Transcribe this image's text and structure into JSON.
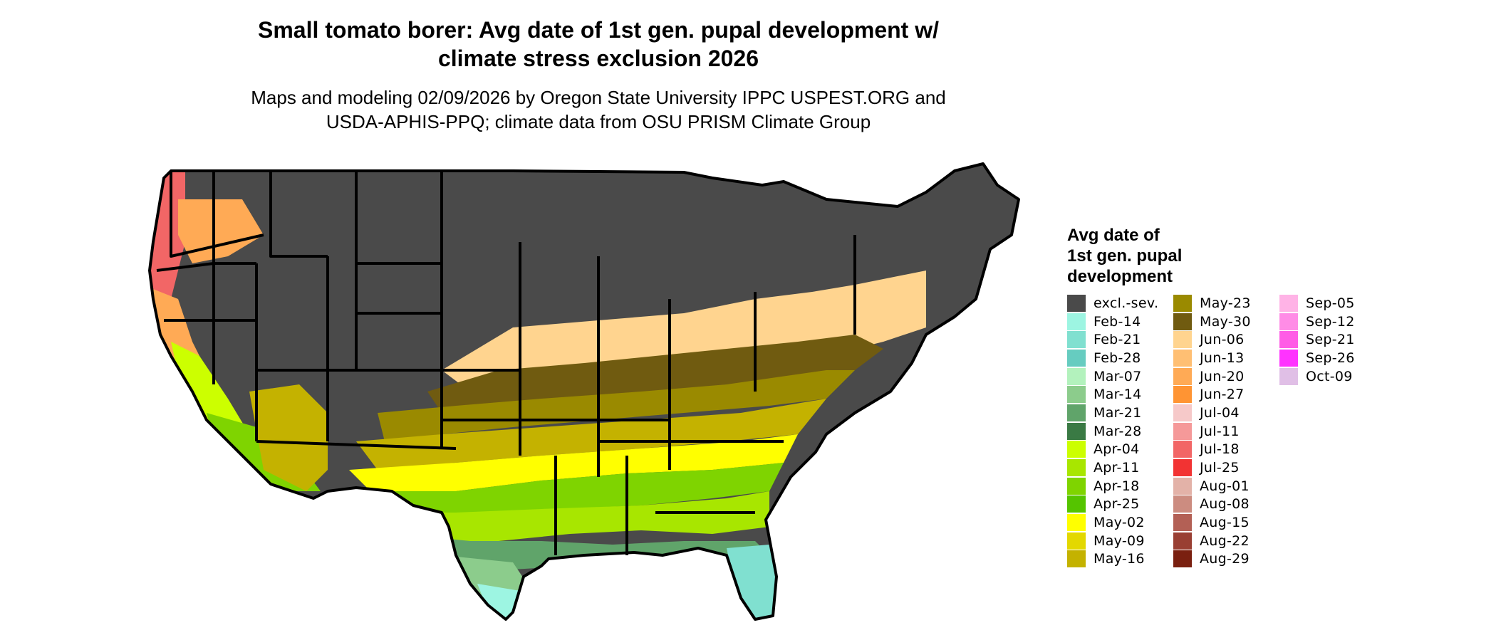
{
  "title_line1": "Small tomato borer: Avg date of 1st gen. pupal development w/",
  "title_line2": "climate stress exclusion 2026",
  "subtitle_line1": "Maps and modeling 02/09/2026 by Oregon State University IPPC USPEST.ORG and",
  "subtitle_line2": "USDA-APHIS-PPQ; climate data from OSU PRISM Climate Group",
  "legend": {
    "title_lines": [
      "Avg date of",
      "1st gen. pupal",
      "development"
    ],
    "columns": [
      [
        {
          "label": "excl.-sev.",
          "color": "#4a4a4a"
        },
        {
          "label": "Feb-14",
          "color": "#9df5e2"
        },
        {
          "label": "Feb-21",
          "color": "#80e0d0"
        },
        {
          "label": "Feb-28",
          "color": "#66ccc0"
        },
        {
          "label": "Mar-07",
          "color": "#b3f2bd"
        },
        {
          "label": "Mar-14",
          "color": "#8ccc8c"
        },
        {
          "label": "Mar-21",
          "color": "#60a46a"
        },
        {
          "label": "Mar-28",
          "color": "#3a7a44"
        },
        {
          "label": "Apr-04",
          "color": "#ccff00"
        },
        {
          "label": "Apr-11",
          "color": "#a8e600"
        },
        {
          "label": "Apr-18",
          "color": "#7fd400"
        },
        {
          "label": "Apr-25",
          "color": "#55c400"
        },
        {
          "label": "May-02",
          "color": "#ffff00"
        },
        {
          "label": "May-09",
          "color": "#e3d800"
        },
        {
          "label": "May-16",
          "color": "#c4b200"
        }
      ],
      [
        {
          "label": "May-23",
          "color": "#9a8a00"
        },
        {
          "label": "May-30",
          "color": "#705b10"
        },
        {
          "label": "Jun-06",
          "color": "#ffd48f"
        },
        {
          "label": "Jun-13",
          "color": "#ffbf73"
        },
        {
          "label": "Jun-20",
          "color": "#ffaa55"
        },
        {
          "label": "Jun-27",
          "color": "#ff9433"
        },
        {
          "label": "Jul-04",
          "color": "#f6c9c9"
        },
        {
          "label": "Jul-11",
          "color": "#f59999"
        },
        {
          "label": "Jul-18",
          "color": "#f26666"
        },
        {
          "label": "Jul-25",
          "color": "#f23333"
        },
        {
          "label": "Aug-01",
          "color": "#e3b2a8"
        },
        {
          "label": "Aug-08",
          "color": "#cc8c80"
        },
        {
          "label": "Aug-15",
          "color": "#b36055"
        },
        {
          "label": "Aug-22",
          "color": "#993f33"
        },
        {
          "label": "Aug-29",
          "color": "#7a2010"
        }
      ],
      [
        {
          "label": "Sep-05",
          "color": "#ffb3e6"
        },
        {
          "label": "Sep-12",
          "color": "#ff8ce6"
        },
        {
          "label": "Sep-21",
          "color": "#ff5ce6"
        },
        {
          "label": "Sep-26",
          "color": "#ff33ff"
        },
        {
          "label": "Oct-09",
          "color": "#e0bfe6"
        }
      ]
    ]
  }
}
